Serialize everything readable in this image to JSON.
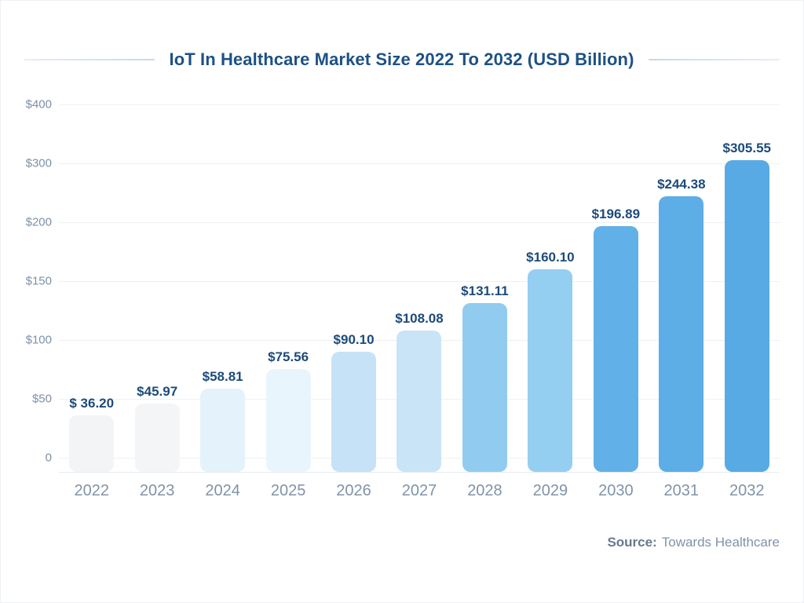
{
  "title": "IoT In Healthcare Market Size 2022 To 2032 (USD Billion)",
  "source": {
    "label": "Source:",
    "value": "Towards Healthcare"
  },
  "colors": {
    "title_text": "#1d5184",
    "value_label_text": "#1c4b7a",
    "axis_text": "#8093a9",
    "gridline": "#edf1f5",
    "bar_colors": [
      "#f3f4f6",
      "#f4f5f7",
      "#e3f2fb",
      "#e9f5fd",
      "#c6e2f6",
      "#c9e4f7",
      "#91ccf0",
      "#94cef1",
      "#62b0e8",
      "#5dade6",
      "#58aae4"
    ]
  },
  "chart_data": {
    "type": "bar",
    "title": "IoT In Healthcare Market Size 2022 To 2032 (USD Billion)",
    "unit": "USD Billion",
    "categories": [
      "2022",
      "2023",
      "2024",
      "2025",
      "2026",
      "2027",
      "2028",
      "2029",
      "2030",
      "2031",
      "2032"
    ],
    "values": [
      36.2,
      45.97,
      58.81,
      75.56,
      90.1,
      108.08,
      131.11,
      160.1,
      196.89,
      244.38,
      305.55
    ],
    "value_labels": [
      "$ 36.20",
      "$45.97",
      "$58.81",
      "$75.56",
      "$90.10",
      "$108.08",
      "$131.11",
      "$160.10",
      "$196.89",
      "$244.38",
      "$305.55"
    ],
    "xlabel": "",
    "ylabel": "",
    "y_ticks": [
      {
        "label": "$400",
        "value": 400
      },
      {
        "label": "$300",
        "value": 300
      },
      {
        "label": "$200",
        "value": 200
      },
      {
        "label": "$150",
        "value": 150
      },
      {
        "label": "$100",
        "value": 100
      },
      {
        "label": "$50",
        "value": 50
      },
      {
        "label": "0",
        "value": 0
      }
    ],
    "axis_note": "y-axis ticks are equally spaced although value intervals differ (non-linear axis)",
    "ylim": [
      0,
      400
    ],
    "grid": true,
    "legend": false
  }
}
